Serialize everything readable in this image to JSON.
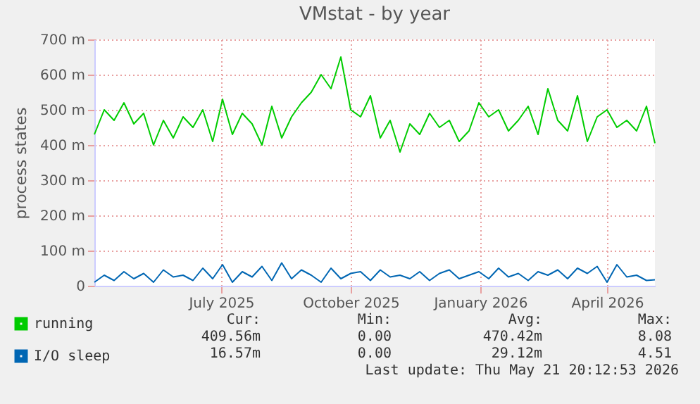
{
  "chart_data": {
    "type": "line",
    "title": "VMstat - by year",
    "ylabel": "process states",
    "x": [
      "2025-04-02",
      "2025-04-09",
      "2025-04-16",
      "2025-04-23",
      "2025-04-30",
      "2025-05-07",
      "2025-05-14",
      "2025-05-21",
      "2025-05-28",
      "2025-06-04",
      "2025-06-11",
      "2025-06-18",
      "2025-06-25",
      "2025-07-02",
      "2025-07-09",
      "2025-07-16",
      "2025-07-23",
      "2025-07-30",
      "2025-08-06",
      "2025-08-13",
      "2025-08-20",
      "2025-08-27",
      "2025-09-03",
      "2025-09-10",
      "2025-09-17",
      "2025-09-24",
      "2025-10-01",
      "2025-10-08",
      "2025-10-15",
      "2025-10-22",
      "2025-10-29",
      "2025-11-05",
      "2025-11-12",
      "2025-11-19",
      "2025-11-26",
      "2025-12-03",
      "2025-12-10",
      "2025-12-17",
      "2025-12-24",
      "2025-12-31",
      "2026-01-07",
      "2026-01-14",
      "2026-01-21",
      "2026-01-28",
      "2026-02-04",
      "2026-02-11",
      "2026-02-18",
      "2026-02-25",
      "2026-03-04",
      "2026-03-11",
      "2026-03-18",
      "2026-03-25",
      "2026-04-01",
      "2026-04-08",
      "2026-04-15",
      "2026-04-22",
      "2026-04-29",
      "2026-05-05"
    ],
    "series": [
      {
        "name": "running",
        "color": "#00cc00",
        "values": [
          430,
          500,
          470,
          520,
          460,
          490,
          400,
          470,
          420,
          480,
          450,
          500,
          410,
          530,
          430,
          490,
          460,
          400,
          510,
          420,
          480,
          520,
          550,
          600,
          560,
          650,
          500,
          480,
          540,
          420,
          470,
          380,
          460,
          430,
          490,
          450,
          470,
          410,
          440,
          520,
          480,
          500,
          440,
          470,
          510,
          430,
          560,
          470,
          440,
          540,
          410,
          480,
          500,
          450,
          470,
          440,
          510,
          405
        ]
      },
      {
        "name": "I/O sleep",
        "color": "#0066b3",
        "values": [
          10,
          30,
          15,
          40,
          20,
          35,
          10,
          45,
          25,
          30,
          15,
          50,
          20,
          60,
          10,
          40,
          25,
          55,
          15,
          65,
          20,
          45,
          30,
          10,
          50,
          20,
          35,
          40,
          15,
          45,
          25,
          30,
          20,
          40,
          15,
          35,
          45,
          20,
          30,
          40,
          20,
          50,
          25,
          35,
          15,
          40,
          30,
          45,
          20,
          50,
          35,
          55,
          10,
          60,
          25,
          30,
          15,
          17
        ]
      }
    ],
    "xlim": [
      "2025-04-02",
      "2026-05-05"
    ],
    "xticks": [
      {
        "value": "2025-07-01",
        "label": "July 2025"
      },
      {
        "value": "2025-10-01",
        "label": "October 2025"
      },
      {
        "value": "2026-01-01",
        "label": "January 2026"
      },
      {
        "value": "2026-04-01",
        "label": "April 2026"
      }
    ],
    "ylim": [
      0,
      700
    ],
    "yticks": [
      {
        "value": 0,
        "label": "0"
      },
      {
        "value": 100,
        "label": "100 m"
      },
      {
        "value": 200,
        "label": "200 m"
      },
      {
        "value": 300,
        "label": "300 m"
      },
      {
        "value": 400,
        "label": "400 m"
      },
      {
        "value": 500,
        "label": "500 m"
      },
      {
        "value": 600,
        "label": "600 m"
      },
      {
        "value": 700,
        "label": "700 m"
      }
    ],
    "grid": true,
    "legend": "bottom left",
    "annotations": [
      "Cur:",
      "Min:",
      "Avg:",
      "Max:",
      "409.56m",
      "0.00",
      "470.42m",
      "8.08",
      "16.57m",
      "0.00",
      "29.12m",
      "4.51",
      "Last update: Thu May 21 20:12:53 2026"
    ]
  }
}
